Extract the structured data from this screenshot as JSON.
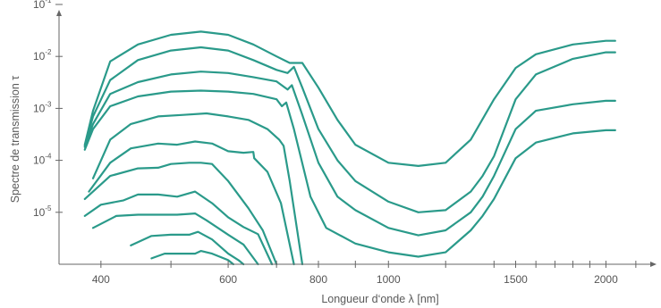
{
  "chart_data": {
    "type": "line",
    "title": "",
    "xlabel": "Longueur d‘onde λ [nm]",
    "ylabel": "Spectre de transmission τ",
    "x_scale": "log",
    "y_scale": "log",
    "xlim": [
      350,
      2350
    ],
    "ylim": [
      1e-06,
      0.1
    ],
    "x_tick_labels": [
      {
        "value": 400,
        "label": "400"
      },
      {
        "value": 600,
        "label": "600"
      },
      {
        "value": 800,
        "label": "800"
      },
      {
        "value": 1000,
        "label": "1000"
      },
      {
        "value": 1500,
        "label": "1500"
      },
      {
        "value": 2000,
        "label": "2000"
      }
    ],
    "x_minor_ticks": [
      500,
      700,
      900,
      1200,
      1400,
      1600,
      1700,
      1800,
      1900,
      2200
    ],
    "y_tick_labels": [
      {
        "value": 0.1,
        "base": "10",
        "exp": "-1"
      },
      {
        "value": 0.01,
        "base": "10",
        "exp": "-2"
      },
      {
        "value": 0.001,
        "base": "10",
        "exp": "-3"
      },
      {
        "value": 0.0001,
        "base": "10",
        "exp": "-4"
      },
      {
        "value": 1e-05,
        "base": "10",
        "exp": "-5"
      }
    ],
    "grid": false,
    "legend": false,
    "line_color": "#2a9a8a",
    "series": [
      {
        "points": [
          [
            380,
            0.0002
          ],
          [
            390,
            0.0009
          ],
          [
            412,
            0.008
          ],
          [
            450,
            0.017
          ],
          [
            500,
            0.026
          ],
          [
            550,
            0.03
          ],
          [
            600,
            0.026
          ],
          [
            650,
            0.017
          ],
          [
            700,
            0.01
          ],
          [
            730,
            0.0075
          ],
          [
            760,
            0.0075
          ],
          [
            800,
            0.0025
          ],
          [
            850,
            0.0006
          ],
          [
            900,
            0.0002
          ],
          [
            1000,
            9e-05
          ],
          [
            1100,
            7.8e-05
          ],
          [
            1200,
            9e-05
          ],
          [
            1300,
            0.00025
          ],
          [
            1400,
            0.0015
          ],
          [
            1500,
            0.006
          ],
          [
            1600,
            0.011
          ],
          [
            1800,
            0.017
          ],
          [
            2000,
            0.02
          ],
          [
            2060,
            0.02
          ]
        ]
      },
      {
        "points": [
          [
            380,
            0.00019
          ],
          [
            390,
            0.0007
          ],
          [
            412,
            0.0035
          ],
          [
            450,
            0.0085
          ],
          [
            500,
            0.013
          ],
          [
            550,
            0.015
          ],
          [
            600,
            0.013
          ],
          [
            650,
            0.0085
          ],
          [
            700,
            0.0055
          ],
          [
            725,
            0.0048
          ],
          [
            740,
            0.0063
          ],
          [
            760,
            0.0025
          ],
          [
            800,
            0.0004
          ],
          [
            850,
            0.0001
          ],
          [
            900,
            4e-05
          ],
          [
            1000,
            1.6e-05
          ],
          [
            1100,
            1e-05
          ],
          [
            1200,
            1.1e-05
          ],
          [
            1300,
            2.5e-05
          ],
          [
            1350,
            5e-05
          ],
          [
            1400,
            0.00012
          ],
          [
            1500,
            0.0015
          ],
          [
            1600,
            0.0045
          ],
          [
            1800,
            0.009
          ],
          [
            2000,
            0.012
          ],
          [
            2060,
            0.012
          ]
        ]
      },
      {
        "points": [
          [
            380,
            0.00018
          ],
          [
            390,
            0.0005
          ],
          [
            412,
            0.0019
          ],
          [
            450,
            0.0032
          ],
          [
            500,
            0.0045
          ],
          [
            550,
            0.0051
          ],
          [
            600,
            0.0048
          ],
          [
            650,
            0.004
          ],
          [
            700,
            0.0033
          ],
          [
            725,
            0.0023
          ],
          [
            735,
            0.0028
          ],
          [
            760,
            0.00075
          ],
          [
            800,
            9e-05
          ],
          [
            850,
            2e-05
          ],
          [
            900,
            1.1e-05
          ],
          [
            1000,
            5e-06
          ],
          [
            1100,
            3.6e-06
          ],
          [
            1200,
            4.5e-06
          ],
          [
            1300,
            1e-05
          ],
          [
            1350,
            2e-05
          ],
          [
            1400,
            5e-05
          ],
          [
            1500,
            0.0004
          ],
          [
            1600,
            0.0009
          ],
          [
            1800,
            0.0012
          ],
          [
            2000,
            0.0014
          ],
          [
            2060,
            0.0014
          ]
        ]
      },
      {
        "points": [
          [
            380,
            0.00016
          ],
          [
            390,
            0.0004
          ],
          [
            412,
            0.0011
          ],
          [
            450,
            0.0017
          ],
          [
            500,
            0.0021
          ],
          [
            550,
            0.0022
          ],
          [
            600,
            0.0021
          ],
          [
            650,
            0.0019
          ],
          [
            700,
            0.0015
          ],
          [
            712,
            0.0011
          ],
          [
            722,
            0.0013
          ],
          [
            740,
            0.0004
          ],
          [
            780,
            2e-05
          ],
          [
            820,
            5e-06
          ],
          [
            900,
            2.5e-06
          ],
          [
            1000,
            1.7e-06
          ],
          [
            1100,
            1.4e-06
          ],
          [
            1200,
            1.7e-06
          ],
          [
            1300,
            4.5e-06
          ],
          [
            1350,
            8.5e-06
          ],
          [
            1400,
            1.8e-05
          ],
          [
            1500,
            0.00011
          ],
          [
            1600,
            0.00022
          ],
          [
            1800,
            0.00033
          ],
          [
            2000,
            0.00038
          ],
          [
            2060,
            0.00038
          ]
        ]
      },
      {
        "points": [
          [
            390,
            4.5e-05
          ],
          [
            412,
            0.00025
          ],
          [
            440,
            0.0005
          ],
          [
            480,
            0.0007
          ],
          [
            520,
            0.00075
          ],
          [
            560,
            0.0008
          ],
          [
            600,
            0.0007
          ],
          [
            640,
            0.0006
          ],
          [
            680,
            0.0004
          ],
          [
            706,
            0.00025
          ],
          [
            716,
            0.00019
          ],
          [
            730,
            4e-05
          ],
          [
            760,
            1e-06
          ]
        ]
      },
      {
        "points": [
          [
            385,
            2.5e-05
          ],
          [
            412,
            9e-05
          ],
          [
            440,
            0.00017
          ],
          [
            480,
            0.00021
          ],
          [
            510,
            0.0002
          ],
          [
            540,
            0.00023
          ],
          [
            570,
            0.00021
          ],
          [
            600,
            0.00015
          ],
          [
            630,
            0.00014
          ],
          [
            650,
            0.000145
          ],
          [
            652,
            0.00011
          ],
          [
            680,
            6e-05
          ],
          [
            710,
            1.5e-05
          ],
          [
            740,
            1e-06
          ]
        ]
      },
      {
        "points": [
          [
            380,
            1.8e-05
          ],
          [
            412,
            5e-05
          ],
          [
            450,
            7e-05
          ],
          [
            480,
            7.2e-05
          ],
          [
            500,
            8.5e-05
          ],
          [
            530,
            9e-05
          ],
          [
            550,
            9e-05
          ],
          [
            570,
            8.5e-05
          ],
          [
            600,
            4e-05
          ],
          [
            640,
            1.2e-05
          ],
          [
            670,
            4.5e-06
          ],
          [
            700,
            1e-06
          ]
        ]
      },
      {
        "points": [
          [
            380,
            8.5e-06
          ],
          [
            400,
            1.4e-05
          ],
          [
            430,
            1.7e-05
          ],
          [
            450,
            2.2e-05
          ],
          [
            480,
            2.2e-05
          ],
          [
            510,
            2e-05
          ],
          [
            540,
            2.5e-05
          ],
          [
            570,
            1.5e-05
          ],
          [
            600,
            8e-06
          ],
          [
            630,
            5.2e-06
          ],
          [
            660,
            3.8e-06
          ],
          [
            690,
            1e-06
          ]
        ]
      },
      {
        "points": [
          [
            390,
            5e-06
          ],
          [
            420,
            8.5e-06
          ],
          [
            450,
            9e-06
          ],
          [
            480,
            9e-06
          ],
          [
            510,
            9e-06
          ],
          [
            540,
            9.5e-06
          ],
          [
            560,
            7e-06
          ],
          [
            600,
            3.7e-06
          ],
          [
            630,
            2.4e-06
          ],
          [
            660,
            1e-06
          ]
        ]
      },
      {
        "points": [
          [
            440,
            2.3e-06
          ],
          [
            470,
            3.5e-06
          ],
          [
            500,
            3.7e-06
          ],
          [
            530,
            3.7e-06
          ],
          [
            545,
            4.2e-06
          ],
          [
            570,
            3e-06
          ],
          [
            600,
            1.6e-06
          ],
          [
            620,
            1.2e-06
          ],
          [
            630,
            1e-06
          ]
        ]
      },
      {
        "points": [
          [
            470,
            1.3e-06
          ],
          [
            490,
            1.6e-06
          ],
          [
            520,
            1.6e-06
          ],
          [
            540,
            1.6e-06
          ],
          [
            550,
            1.8e-06
          ],
          [
            570,
            1.6e-06
          ],
          [
            600,
            1.2e-06
          ],
          [
            610,
            1e-06
          ]
        ]
      }
    ]
  }
}
